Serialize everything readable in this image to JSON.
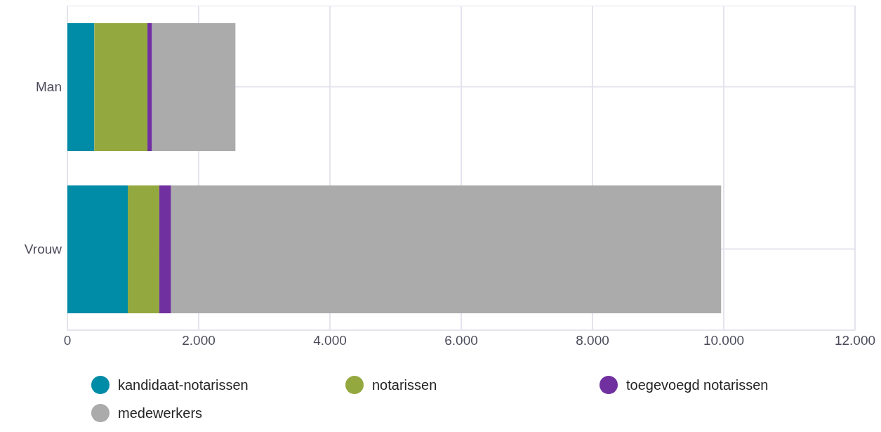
{
  "chart_data": {
    "type": "bar",
    "orientation": "horizontal",
    "stacked": true,
    "categories": [
      "Man",
      "Vrouw"
    ],
    "series": [
      {
        "name": "kandidaat-notarissen",
        "color": "#008ba6",
        "values": [
          410,
          920
        ]
      },
      {
        "name": "notarissen",
        "color": "#94a840",
        "values": [
          810,
          480
        ]
      },
      {
        "name": "toegevoegd notarissen",
        "color": "#7030a0",
        "values": [
          70,
          180
        ]
      },
      {
        "name": "medewerkers",
        "color": "#ababab",
        "values": [
          1270,
          8380
        ]
      }
    ],
    "xlim": [
      0,
      12000
    ],
    "xticks": [
      0,
      {
        "value": 2000,
        "label": "2.000"
      },
      {
        "value": 4000,
        "label": "4.000"
      },
      {
        "value": 6000,
        "label": "6.000"
      },
      {
        "value": 8000,
        "label": "8.000"
      },
      {
        "value": 10000,
        "label": "10.000"
      },
      {
        "value": 12000,
        "label": "12.000"
      }
    ],
    "grid": true,
    "legend": "bottom"
  }
}
